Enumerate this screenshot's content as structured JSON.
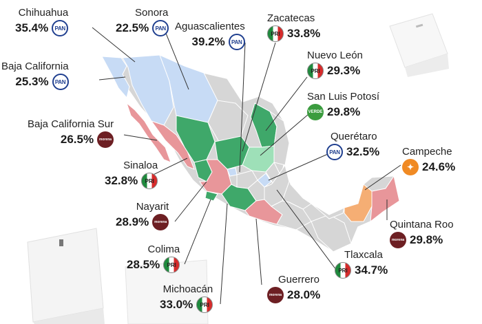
{
  "colors": {
    "PAN": "#c7dbf5",
    "PRI": "#e8969a",
    "MORENA": "#e8969a",
    "VERDE": "#9ee0b8",
    "MC": "#f5ae74",
    "other_winners": "#3fa86a",
    "neutral": "#d6d6d6"
  },
  "states": [
    {
      "name": "Chihuahua",
      "pct": "35.4%",
      "party": "PAN"
    },
    {
      "name": "Sonora",
      "pct": "22.5%",
      "party": "PAN"
    },
    {
      "name": "Aguascalientes",
      "pct": "39.2%",
      "party": "PAN"
    },
    {
      "name": "Zacatecas",
      "pct": "33.8%",
      "party": "PRI"
    },
    {
      "name": "Baja California",
      "pct": "25.3%",
      "party": "PAN"
    },
    {
      "name": "Nuevo León",
      "pct": "29.3%",
      "party": "PRI"
    },
    {
      "name": "San Luis Potosí",
      "pct": "29.8%",
      "party": "VERDE"
    },
    {
      "name": "Baja California Sur",
      "pct": "26.5%",
      "party": "MORENA"
    },
    {
      "name": "Querétaro",
      "pct": "32.5%",
      "party": "PAN"
    },
    {
      "name": "Campeche",
      "pct": "24.6%",
      "party": "MC"
    },
    {
      "name": "Sinaloa",
      "pct": "32.8%",
      "party": "PRI"
    },
    {
      "name": "Nayarit",
      "pct": "28.9%",
      "party": "MORENA"
    },
    {
      "name": "Quintana Roo",
      "pct": "29.8%",
      "party": "MORENA"
    },
    {
      "name": "Colima",
      "pct": "28.5%",
      "party": "PRI"
    },
    {
      "name": "Tlaxcala",
      "pct": "34.7%",
      "party": "PRI"
    },
    {
      "name": "Michoacán",
      "pct": "33.0%",
      "party": "PRI"
    },
    {
      "name": "Guerrero",
      "pct": "28.0%",
      "party": "MORENA"
    }
  ],
  "logo_text": {
    "PAN": "PAN",
    "PRI": "PRI",
    "MORENA": "morena",
    "VERDE": "VERDE",
    "MC": "✦"
  }
}
